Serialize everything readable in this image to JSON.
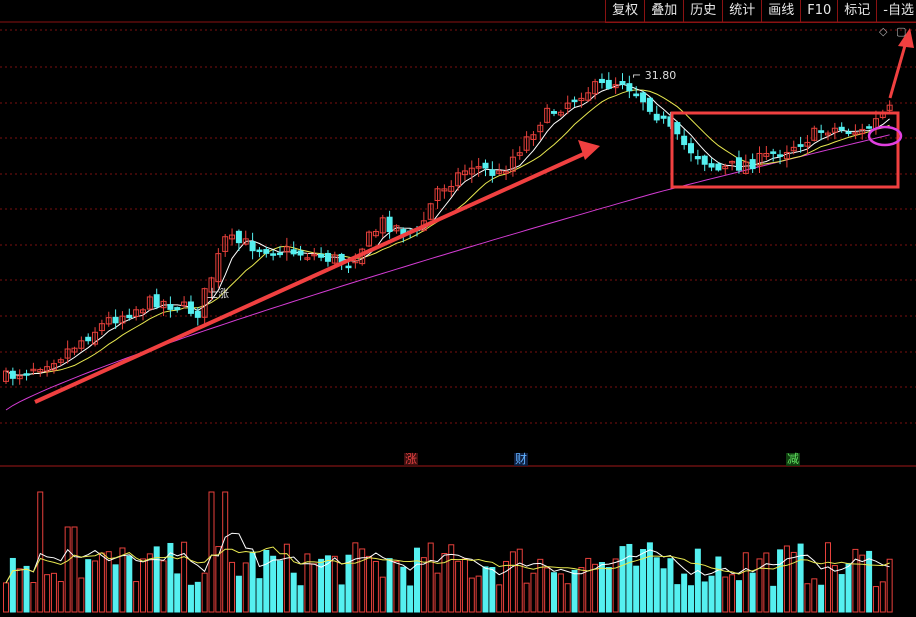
{
  "toolbar": {
    "items": [
      "复权",
      "叠加",
      "历史",
      "统计",
      "画线",
      "F10",
      "标记",
      "-自选"
    ]
  },
  "colors": {
    "up": "#e8413c",
    "down": "#55f0f0",
    "ma_fast": "#ffffff",
    "ma_mid": "#e8e850",
    "ma_slow": "#d43cd4",
    "grid": "#7a1010",
    "annot": "#f04040",
    "circle": "#e040e0"
  },
  "icons": {
    "diamond": "diamond-icon",
    "square": "square-icon"
  },
  "price_chart": {
    "peak_label": "31.80",
    "up_label": "上涨"
  },
  "events": [
    {
      "label": "涨",
      "color": "#e04040",
      "bg": "#401010"
    },
    {
      "label": "财",
      "color": "#60b0ff",
      "bg": "#102040"
    },
    {
      "label": "减",
      "color": "#60e060",
      "bg": "#104010"
    }
  ],
  "chart_data": {
    "type": "candlestick",
    "title": "",
    "note": "Price values in screen-relative units; peak labeled 31.80. Candles: open, close, high, low.",
    "ma_series": [
      "MA5 (white)",
      "MA10 (yellow)",
      "MA60 (magenta)"
    ],
    "volume_chart": "bars red (up) / cyan (down) with two moving-average lines"
  }
}
